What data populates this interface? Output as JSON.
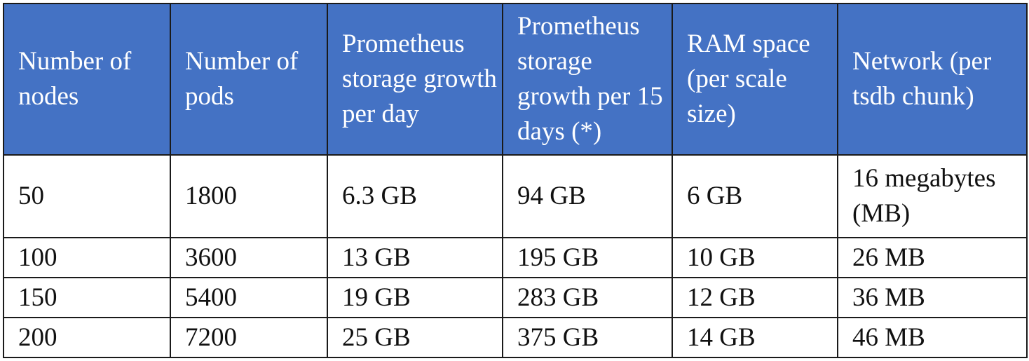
{
  "table": {
    "headers": [
      "Number of nodes",
      "Number of pods",
      "Prometheus storage growth per day",
      "Prometheus storage growth per 15 days (*)",
      "RAM space (per scale size)",
      "Network (per tsdb chunk)"
    ],
    "rows": [
      [
        "50",
        "1800",
        "6.3 GB",
        "94 GB",
        "6 GB",
        "16 megabytes (MB)"
      ],
      [
        "100",
        "3600",
        "13 GB",
        "195 GB",
        "10 GB",
        "26 MB"
      ],
      [
        "150",
        "5400",
        "19 GB",
        "283 GB",
        "12 GB",
        "36 MB"
      ],
      [
        "200",
        "7200",
        "25 GB",
        "375 GB",
        "14 GB",
        "46 MB"
      ]
    ]
  },
  "colors": {
    "header_background": "#4472c4",
    "header_text": "#ffffff",
    "border": "#1a1a1a",
    "body_text": "#111111"
  }
}
